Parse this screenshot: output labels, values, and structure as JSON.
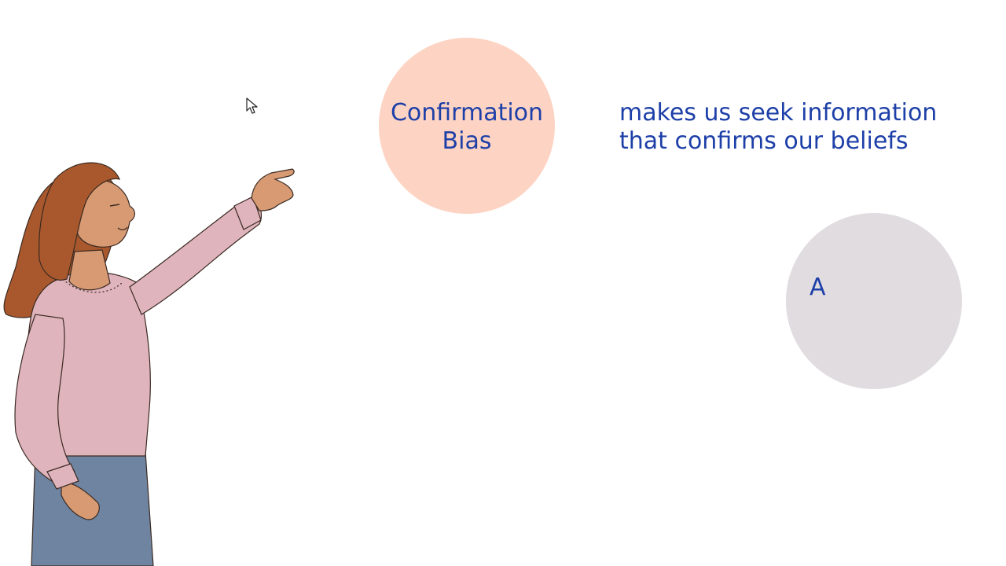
{
  "slide": {
    "term": {
      "line1": "Confirmation",
      "line2": "Bias"
    },
    "definition": {
      "line1": "makes us seek information",
      "line2": "that confirms our beliefs"
    },
    "next_bubble_letter": "A"
  },
  "colors": {
    "text": "#1d3fa8",
    "term_bubble": "#fdd4c3",
    "next_bubble": "#e0dce0",
    "sweater": "#e0b4bd",
    "jeans": "#6f84a0",
    "hair": "#a8582c",
    "skin": "#d79a73"
  },
  "icons": [
    "mouse-pointer-icon",
    "presenter-illustration"
  ]
}
